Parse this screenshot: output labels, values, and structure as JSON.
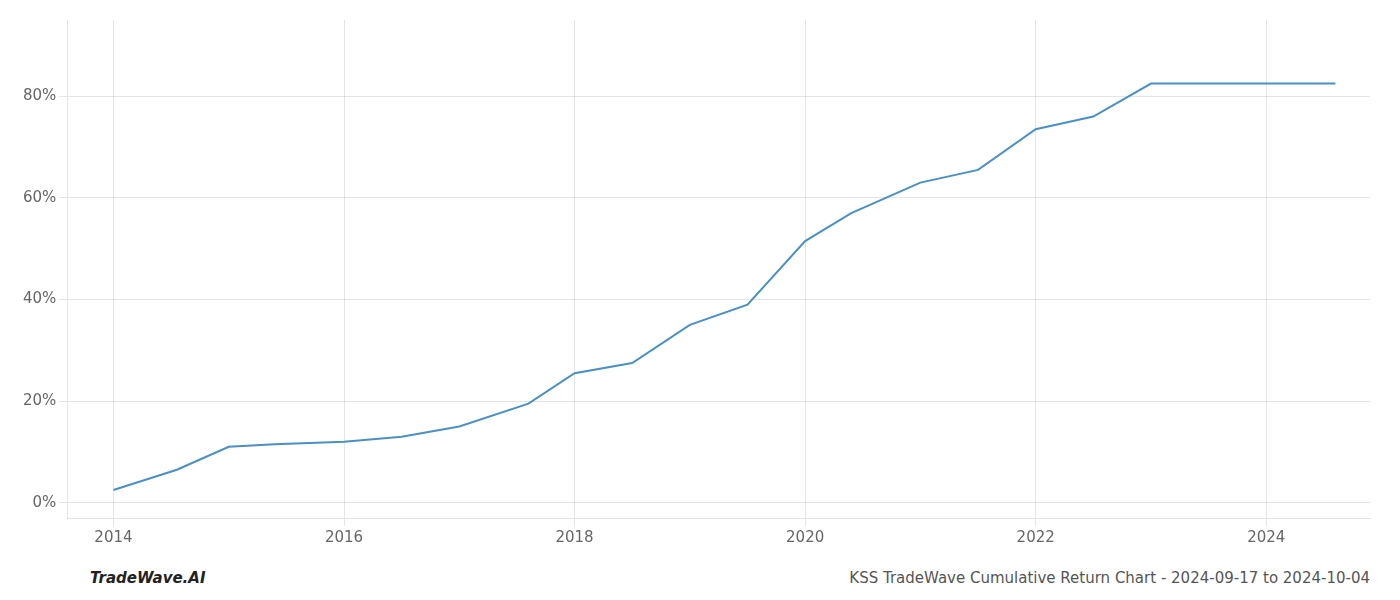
{
  "chart_data": {
    "type": "line",
    "title": "KSS TradeWave Cumulative Return Chart - 2024-09-17 to 2024-10-04",
    "annotations": [
      "TradeWave.AI"
    ],
    "x": [
      2014.0,
      2014.55,
      2015.0,
      2015.4,
      2016.0,
      2016.5,
      2017.0,
      2017.6,
      2018.0,
      2018.5,
      2019.0,
      2019.5,
      2020.0,
      2020.4,
      2021.0,
      2021.5,
      2022.0,
      2022.5,
      2023.0,
      2023.5,
      2024.0,
      2024.6
    ],
    "values": [
      2.5,
      6.5,
      11.0,
      11.5,
      12.0,
      13.0,
      15.0,
      19.5,
      25.5,
      27.5,
      35.0,
      39.0,
      51.5,
      57.0,
      63.0,
      65.5,
      73.5,
      76.0,
      82.5,
      82.5,
      82.5,
      82.5
    ],
    "color": "#4a90c4",
    "xlim": [
      2013.6,
      2024.9
    ],
    "ylim": [
      -3,
      95
    ],
    "xticks": [
      2014,
      2016,
      2018,
      2020,
      2022,
      2024
    ],
    "yticks": [
      {
        "value": 0,
        "label": "0%"
      },
      {
        "value": 20,
        "label": "20%"
      },
      {
        "value": 40,
        "label": "40%"
      },
      {
        "value": 60,
        "label": "60%"
      },
      {
        "value": 80,
        "label": "80%"
      }
    ],
    "grid": true
  }
}
